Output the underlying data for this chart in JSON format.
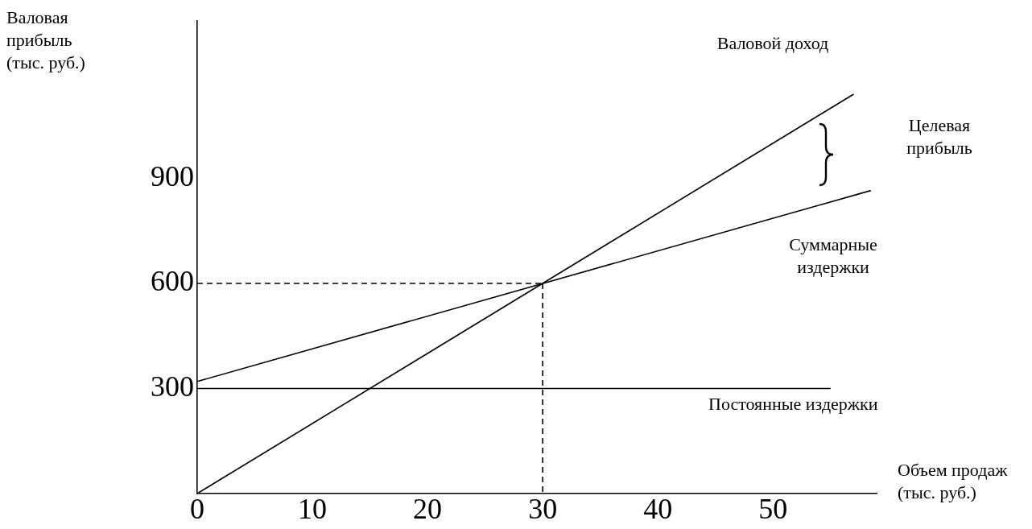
{
  "chart_data": {
    "type": "line",
    "xlabel": "Объем продаж (тыс. руб.)",
    "ylabel": "Валовая прибыль (тыс. руб.)",
    "xlim": [
      0,
      59
    ],
    "ylim": [
      0,
      1350
    ],
    "xticks": [
      0,
      10,
      20,
      30,
      40,
      50
    ],
    "yticks": [
      300,
      600,
      900
    ],
    "grid": false,
    "legend": false,
    "marker": "none",
    "annotations": [
      "Целевая прибыль"
    ],
    "series": [
      {
        "name": "Валовой доход",
        "color": "#000000",
        "x": [
          0,
          57
        ],
        "values": [
          0,
          1140
        ]
      },
      {
        "name": "Суммарные издержки",
        "color": "#000000",
        "x": [
          0,
          58.5
        ],
        "values": [
          320,
          865
        ]
      },
      {
        "name": "Постоянные издержки",
        "color": "#000000",
        "x": [
          0,
          55
        ],
        "values": [
          300,
          300
        ]
      },
      {
        "color": "#000000",
        "x": [
          0,
          30
        ],
        "values": [
          600,
          600
        ],
        "line_style": "dashed"
      },
      {
        "color": "#000000",
        "x": [
          30,
          30
        ],
        "values": [
          600,
          0
        ],
        "line_style": "dashed"
      }
    ]
  }
}
